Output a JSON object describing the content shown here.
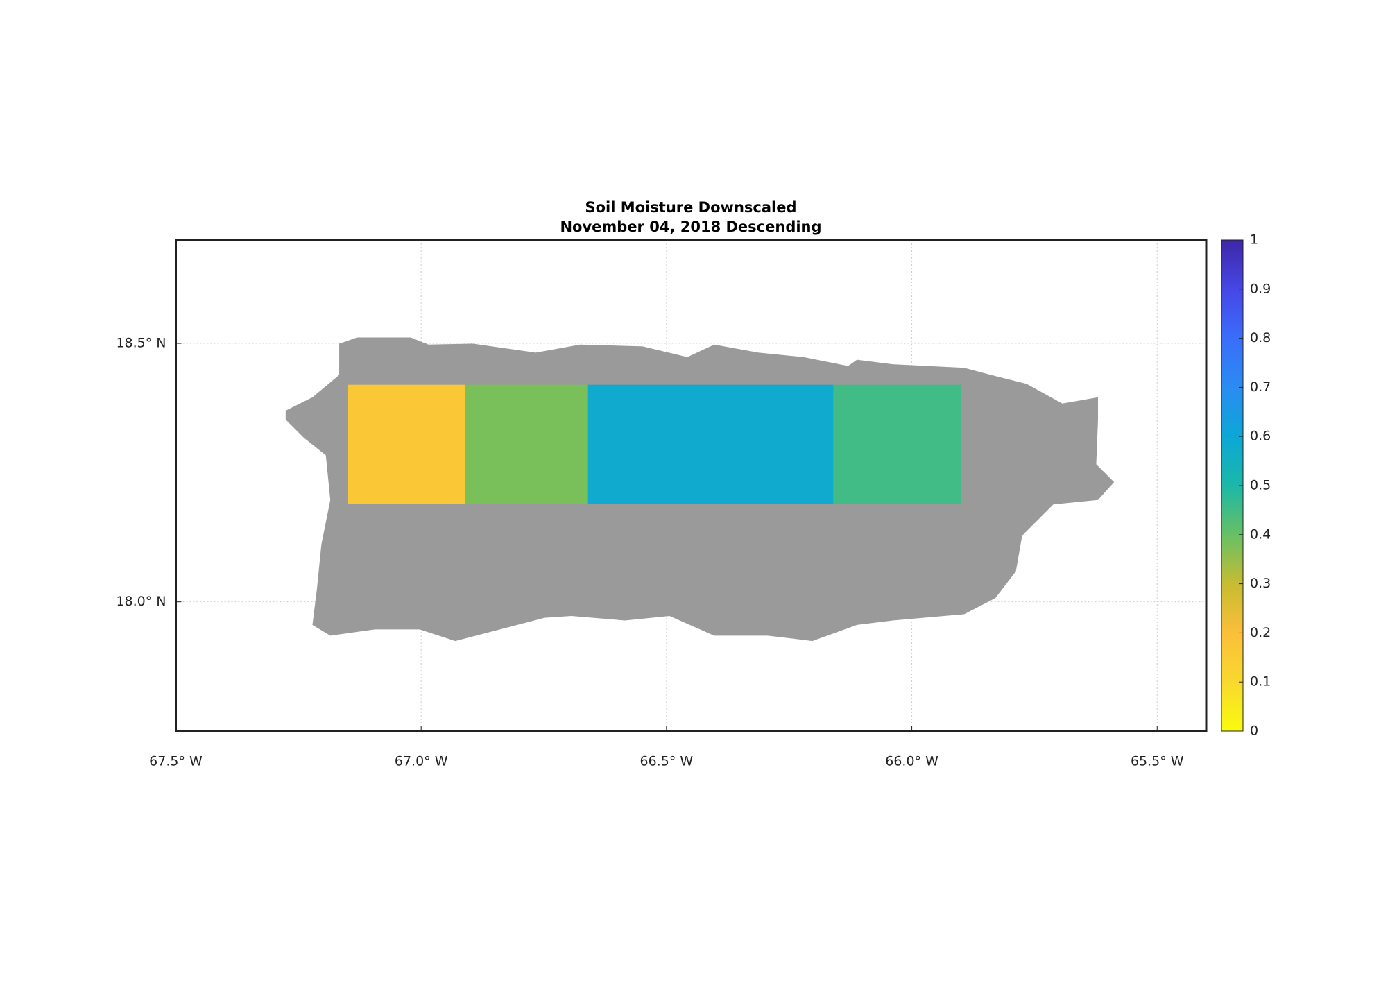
{
  "chart_data": {
    "type": "map",
    "title": [
      "Soil Moisture Downscaled",
      "November 04, 2018 Descending"
    ],
    "xlim": [
      -67.5,
      -65.4
    ],
    "ylim": [
      17.75,
      18.7
    ],
    "xticks": [
      {
        "value": -67.5,
        "label": "67.5° W"
      },
      {
        "value": -67.0,
        "label": "67.0° W"
      },
      {
        "value": -66.5,
        "label": "66.5° W"
      },
      {
        "value": -66.0,
        "label": "66.0° W"
      },
      {
        "value": -65.5,
        "label": "65.5° W"
      }
    ],
    "yticks": [
      {
        "value": 18.0,
        "label": "18.0° N"
      },
      {
        "value": 18.5,
        "label": "18.5° N"
      }
    ],
    "grid": true,
    "swath": {
      "lon_edges": [
        -67.15,
        -66.91,
        -66.66,
        -66.16,
        -65.9
      ],
      "lat_range": [
        18.19,
        18.42
      ],
      "values": [
        0.17,
        0.38,
        0.58,
        0.45
      ]
    },
    "colorbar": {
      "clim": [
        0,
        1
      ],
      "ticks": [
        0,
        0.1,
        0.2,
        0.3,
        0.4,
        0.5,
        0.6,
        0.7,
        0.8,
        0.9,
        1
      ]
    }
  }
}
